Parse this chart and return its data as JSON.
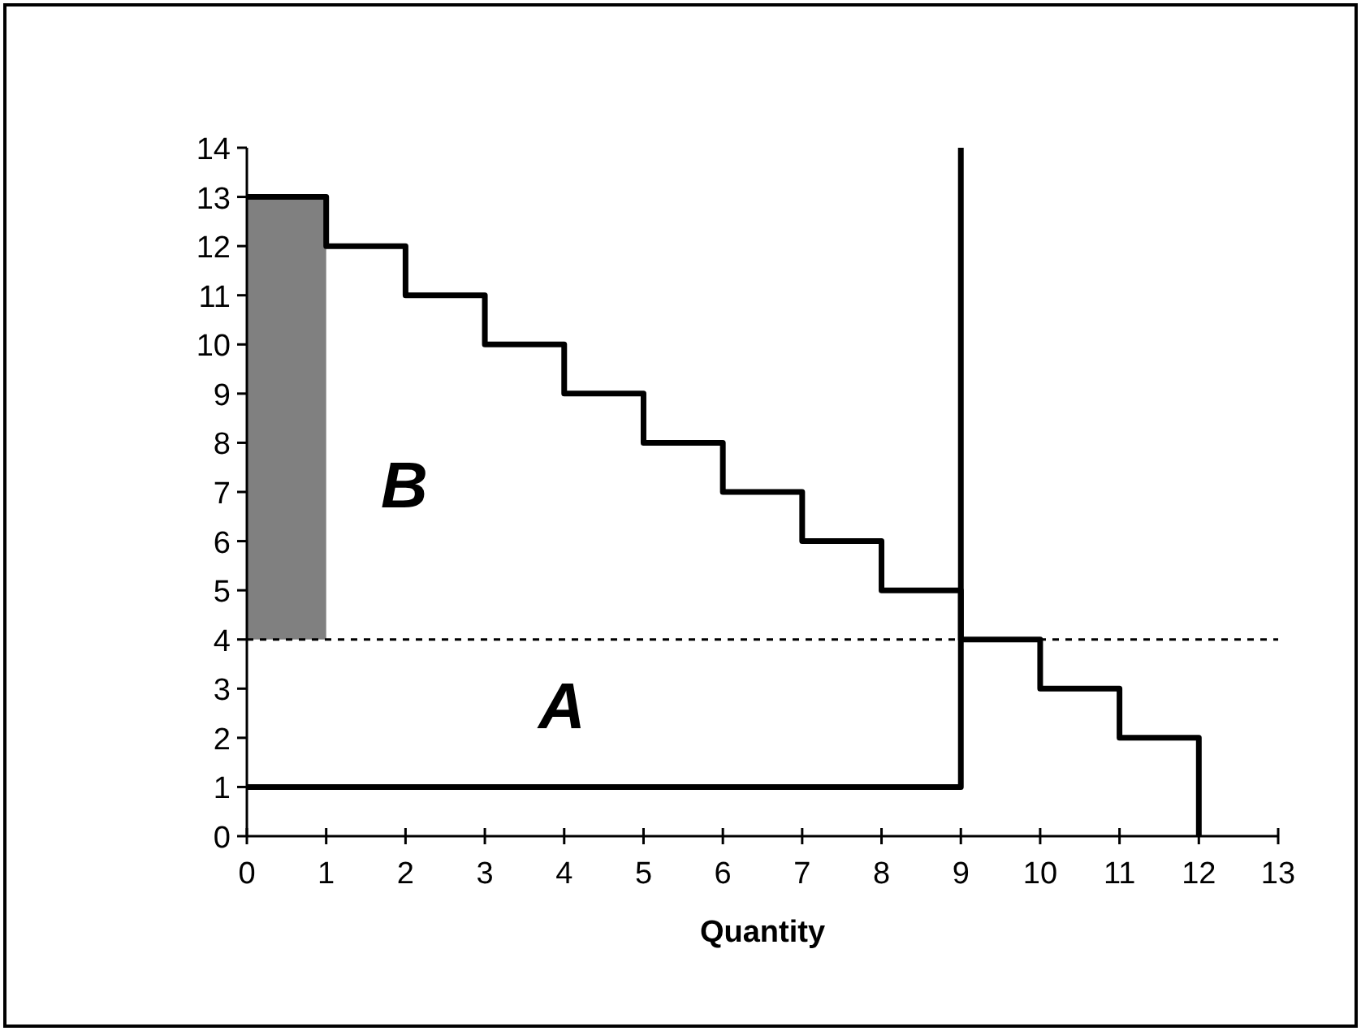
{
  "chart_data": {
    "type": "step",
    "xlabel": "Quantity",
    "xlim": [
      0,
      13
    ],
    "xticks": [
      0,
      1,
      2,
      3,
      4,
      5,
      6,
      7,
      8,
      9,
      10,
      11,
      12,
      13
    ],
    "ylim": [
      0,
      14
    ],
    "yticks": [
      0,
      1,
      2,
      3,
      4,
      5,
      6,
      7,
      8,
      9,
      10,
      11,
      12,
      13,
      14
    ],
    "grid": false,
    "series": [
      {
        "type": "bar",
        "color": "#808080",
        "x": [
          0.5
        ],
        "base": [
          4
        ],
        "values": [
          9
        ]
      },
      {
        "color": "#000000",
        "x": [
          0,
          1,
          2,
          3,
          4,
          5,
          6,
          7,
          8,
          9,
          10,
          11,
          12
        ],
        "values": [
          13,
          12,
          11,
          10,
          9,
          8,
          7,
          6,
          5,
          4,
          3,
          2,
          0
        ]
      },
      {
        "type": "line",
        "color": "#000000",
        "x": [
          0,
          9,
          9
        ],
        "values": [
          1,
          1,
          14
        ]
      }
    ],
    "ref_lines": [
      {
        "axis": "y",
        "value": 4,
        "color": "#000000",
        "line_style": "dashed"
      }
    ],
    "annotations": [
      "B",
      "A"
    ]
  }
}
